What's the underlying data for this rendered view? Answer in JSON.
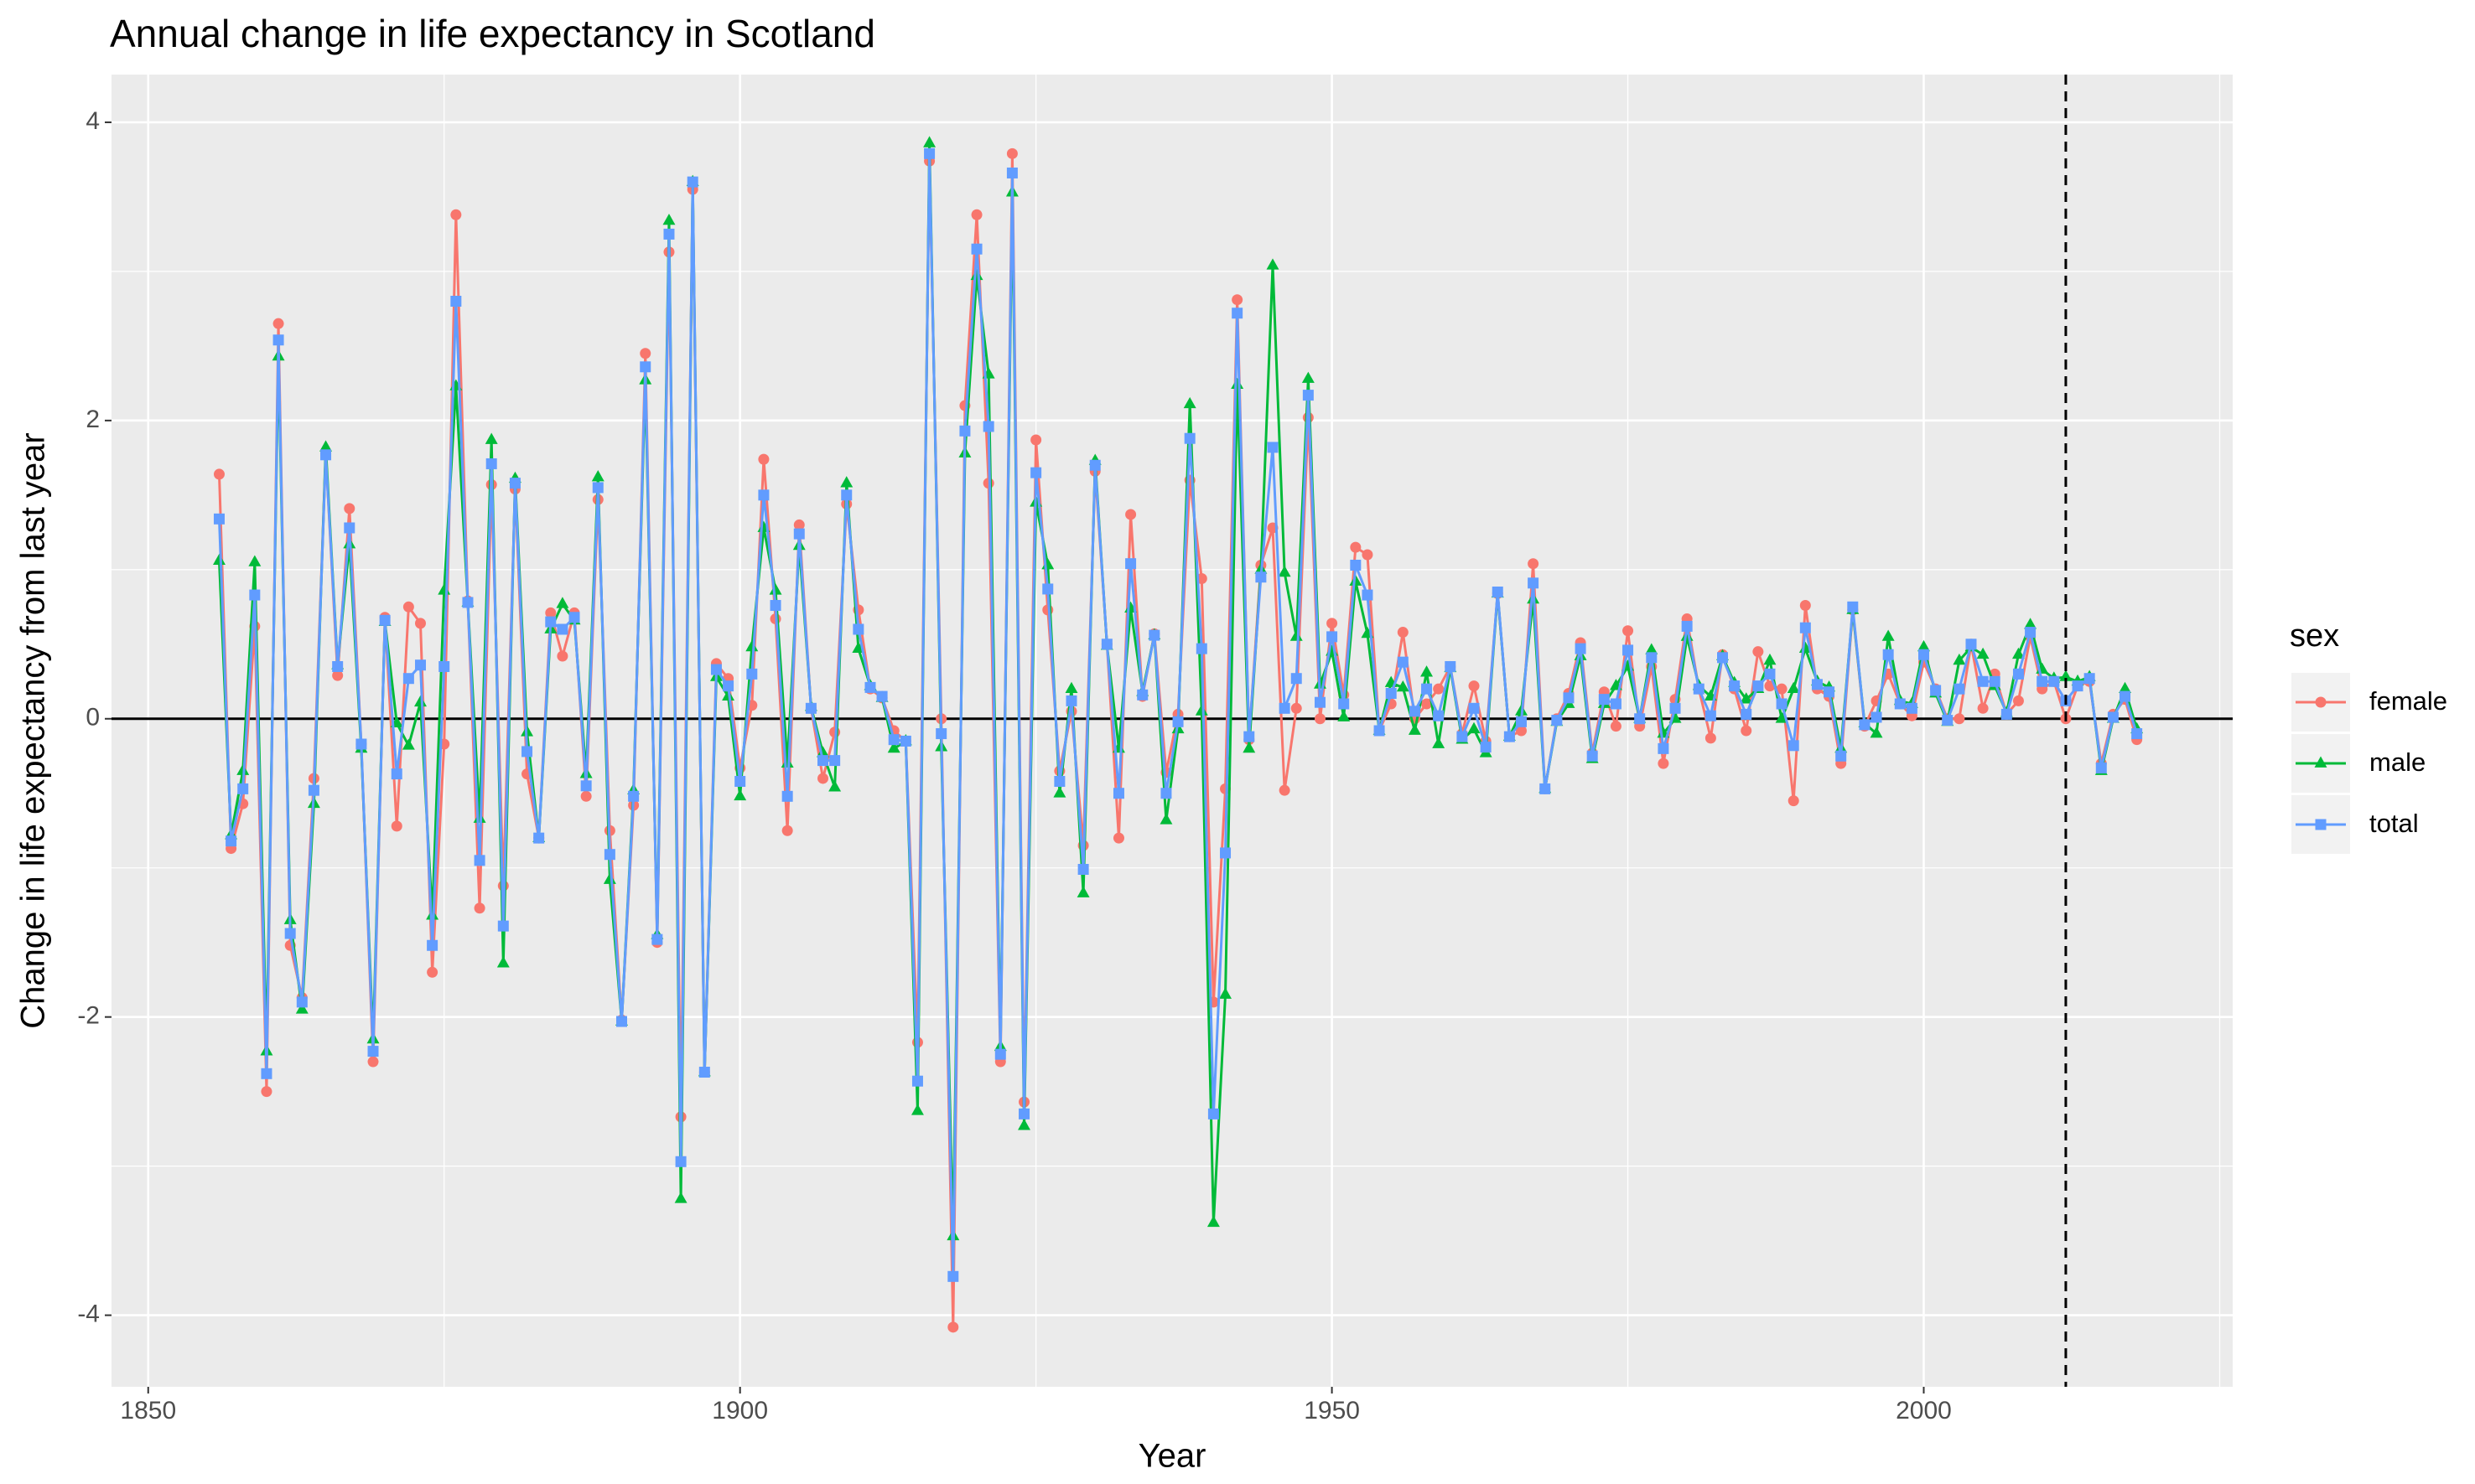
{
  "chart_data": {
    "type": "line",
    "title": "Annual change in life expectancy in Scotland",
    "x_label": "Year",
    "y_label": "Change in life expectancy from last year",
    "legend_title": "sex",
    "legend": "right",
    "grid": true,
    "xlim": [
      1846.9,
      2026.1
    ],
    "ylim": [
      -4.48,
      4.32
    ],
    "xticks": [
      1850,
      1900,
      1950,
      2000
    ],
    "yticks": [
      -4,
      -2,
      0,
      2,
      4
    ],
    "hline": 0,
    "vline": 2012,
    "x": [
      1856,
      1857,
      1858,
      1859,
      1860,
      1861,
      1862,
      1863,
      1864,
      1865,
      1866,
      1867,
      1868,
      1869,
      1870,
      1871,
      1872,
      1873,
      1874,
      1875,
      1876,
      1877,
      1878,
      1879,
      1880,
      1881,
      1882,
      1883,
      1884,
      1885,
      1886,
      1887,
      1888,
      1889,
      1890,
      1891,
      1892,
      1893,
      1894,
      1895,
      1896,
      1897,
      1898,
      1899,
      1900,
      1901,
      1902,
      1903,
      1904,
      1905,
      1906,
      1907,
      1908,
      1909,
      1910,
      1911,
      1912,
      1913,
      1914,
      1915,
      1916,
      1917,
      1918,
      1919,
      1920,
      1921,
      1922,
      1923,
      1924,
      1925,
      1926,
      1927,
      1928,
      1929,
      1930,
      1931,
      1932,
      1933,
      1934,
      1935,
      1936,
      1937,
      1938,
      1939,
      1940,
      1941,
      1942,
      1943,
      1944,
      1945,
      1946,
      1947,
      1948,
      1949,
      1950,
      1951,
      1952,
      1953,
      1954,
      1955,
      1956,
      1957,
      1958,
      1959,
      1960,
      1961,
      1962,
      1963,
      1964,
      1965,
      1966,
      1967,
      1968,
      1969,
      1970,
      1971,
      1972,
      1973,
      1974,
      1975,
      1976,
      1977,
      1978,
      1979,
      1980,
      1981,
      1982,
      1983,
      1984,
      1985,
      1986,
      1987,
      1988,
      1989,
      1990,
      1991,
      1992,
      1993,
      1994,
      1995,
      1996,
      1997,
      1998,
      1999,
      2000,
      2001,
      2002,
      2003,
      2004,
      2005,
      2006,
      2007,
      2008,
      2009,
      2010,
      2011,
      2012,
      2013,
      2014,
      2015,
      2016,
      2017,
      2018
    ],
    "series": [
      {
        "name": "female",
        "color": "#F8766D",
        "shape": "circle",
        "values": [
          1.64,
          -0.87,
          -0.57,
          0.62,
          -2.5,
          2.65,
          -1.52,
          -1.87,
          -0.4,
          1.78,
          0.29,
          1.41,
          -0.17,
          -2.3,
          0.68,
          -0.72,
          0.75,
          0.64,
          -1.7,
          -0.17,
          3.38,
          0.79,
          -1.27,
          1.57,
          -1.12,
          1.54,
          -0.37,
          -0.8,
          0.71,
          0.42,
          0.71,
          -0.52,
          1.47,
          -0.75,
          -2.02,
          -0.58,
          2.45,
          -1.5,
          3.13,
          -2.67,
          3.55,
          -2.37,
          0.37,
          0.27,
          -0.33,
          0.09,
          1.74,
          0.67,
          -0.75,
          1.3,
          0.07,
          -0.4,
          -0.09,
          1.44,
          0.73,
          0.2,
          0.14,
          -0.08,
          -0.15,
          -2.17,
          3.74,
          0.0,
          -4.08,
          2.1,
          3.38,
          1.58,
          -2.3,
          3.79,
          -2.57,
          1.87,
          0.73,
          -0.35,
          0.05,
          -0.85,
          1.66,
          0.5,
          -0.8,
          1.37,
          0.15,
          0.57,
          -0.36,
          0.03,
          1.6,
          0.94,
          -1.9,
          -0.47,
          2.81,
          -0.14,
          1.03,
          1.28,
          -0.48,
          0.07,
          2.02,
          0.0,
          0.64,
          0.16,
          1.15,
          1.1,
          -0.08,
          0.1,
          0.58,
          0.0,
          0.1,
          0.2,
          0.35,
          -0.1,
          0.22,
          -0.15,
          0.84,
          -0.12,
          -0.08,
          1.04,
          -0.47,
          0.0,
          0.17,
          0.51,
          -0.23,
          0.18,
          -0.05,
          0.59,
          -0.05,
          0.35,
          -0.3,
          0.13,
          0.67,
          0.2,
          -0.13,
          0.43,
          0.2,
          -0.08,
          0.45,
          0.22,
          0.2,
          -0.55,
          0.76,
          0.2,
          0.15,
          -0.3,
          0.73,
          -0.05,
          0.12,
          0.3,
          0.1,
          0.02,
          0.38,
          0.2,
          0.0,
          0.0,
          0.5,
          0.07,
          0.3,
          0.03,
          0.12,
          0.55,
          0.2,
          0.25,
          0.0,
          0.22,
          0.25,
          -0.3,
          0.03,
          0.13,
          -0.14
        ]
      },
      {
        "name": "male",
        "color": "#00BA38",
        "shape": "triangle",
        "values": [
          1.06,
          -0.78,
          -0.35,
          1.05,
          -2.23,
          2.43,
          -1.35,
          -1.95,
          -0.57,
          1.82,
          0.36,
          1.17,
          -0.2,
          -2.15,
          0.65,
          -0.03,
          -0.18,
          0.11,
          -1.32,
          0.86,
          2.23,
          0.78,
          -0.67,
          1.87,
          -1.64,
          1.61,
          -0.09,
          -0.8,
          0.6,
          0.77,
          0.66,
          -0.37,
          1.62,
          -1.08,
          -2.03,
          -0.48,
          2.27,
          -1.45,
          3.34,
          -3.22,
          3.6,
          -2.37,
          0.28,
          0.15,
          -0.52,
          0.48,
          1.28,
          0.86,
          -0.3,
          1.16,
          0.08,
          -0.23,
          -0.46,
          1.58,
          0.47,
          0.22,
          0.14,
          -0.2,
          -0.15,
          -2.63,
          3.86,
          -0.19,
          -3.47,
          1.78,
          2.97,
          2.31,
          -2.2,
          3.53,
          -2.73,
          1.45,
          1.03,
          -0.5,
          0.2,
          -1.17,
          1.73,
          0.49,
          -0.2,
          0.74,
          0.18,
          0.56,
          -0.68,
          -0.07,
          2.11,
          0.05,
          -3.38,
          -1.85,
          2.24,
          -0.2,
          1.0,
          3.04,
          0.98,
          0.55,
          2.28,
          0.23,
          0.45,
          0.01,
          0.92,
          0.57,
          -0.08,
          0.24,
          0.21,
          -0.08,
          0.31,
          -0.17,
          0.34,
          -0.14,
          -0.07,
          -0.23,
          0.84,
          -0.12,
          0.05,
          0.8,
          -0.47,
          -0.02,
          0.1,
          0.42,
          -0.27,
          0.1,
          0.22,
          0.35,
          0.0,
          0.46,
          -0.1,
          0.0,
          0.55,
          0.22,
          0.15,
          0.42,
          0.24,
          0.13,
          0.2,
          0.39,
          0.0,
          0.2,
          0.47,
          0.25,
          0.21,
          -0.2,
          0.73,
          -0.03,
          -0.1,
          0.55,
          0.12,
          0.1,
          0.48,
          0.17,
          -0.02,
          0.39,
          0.48,
          0.43,
          0.22,
          0.04,
          0.43,
          0.63,
          0.33,
          0.27,
          0.28,
          0.25,
          0.28,
          -0.35,
          0.0,
          0.2,
          -0.07
        ]
      },
      {
        "name": "total",
        "color": "#619CFF",
        "shape": "square",
        "values": [
          1.34,
          -0.82,
          -0.47,
          0.83,
          -2.38,
          2.54,
          -1.44,
          -1.9,
          -0.48,
          1.77,
          0.35,
          1.28,
          -0.17,
          -2.23,
          0.66,
          -0.37,
          0.27,
          0.36,
          -1.52,
          0.35,
          2.8,
          0.78,
          -0.95,
          1.71,
          -1.39,
          1.58,
          -0.22,
          -0.8,
          0.65,
          0.6,
          0.68,
          -0.45,
          1.55,
          -0.91,
          -2.03,
          -0.52,
          2.36,
          -1.48,
          3.25,
          -2.97,
          3.6,
          -2.37,
          0.33,
          0.22,
          -0.42,
          0.3,
          1.5,
          0.76,
          -0.52,
          1.24,
          0.07,
          -0.28,
          -0.28,
          1.5,
          0.6,
          0.21,
          0.15,
          -0.14,
          -0.15,
          -2.43,
          3.79,
          -0.1,
          -3.74,
          1.93,
          3.15,
          1.96,
          -2.25,
          3.66,
          -2.65,
          1.65,
          0.87,
          -0.42,
          0.12,
          -1.01,
          1.7,
          0.5,
          -0.5,
          1.04,
          0.16,
          0.56,
          -0.5,
          -0.02,
          1.88,
          0.47,
          -2.65,
          -0.9,
          2.72,
          -0.12,
          0.95,
          1.82,
          0.07,
          0.27,
          2.17,
          0.11,
          0.55,
          0.1,
          1.03,
          0.83,
          -0.08,
          0.17,
          0.38,
          0.05,
          0.2,
          0.02,
          0.35,
          -0.12,
          0.07,
          -0.19,
          0.85,
          -0.12,
          -0.02,
          0.91,
          -0.47,
          -0.01,
          0.14,
          0.47,
          -0.25,
          0.13,
          0.1,
          0.46,
          0.0,
          0.41,
          -0.2,
          0.07,
          0.62,
          0.2,
          0.02,
          0.41,
          0.22,
          0.03,
          0.22,
          0.3,
          0.1,
          -0.18,
          0.61,
          0.23,
          0.18,
          -0.25,
          0.75,
          -0.04,
          0.01,
          0.43,
          0.1,
          0.07,
          0.43,
          0.19,
          -0.01,
          0.2,
          0.5,
          0.25,
          0.25,
          0.03,
          0.3,
          0.58,
          0.25,
          0.25,
          0.12,
          0.22,
          0.27,
          -0.33,
          0.01,
          0.15,
          -0.1
        ]
      }
    ]
  }
}
